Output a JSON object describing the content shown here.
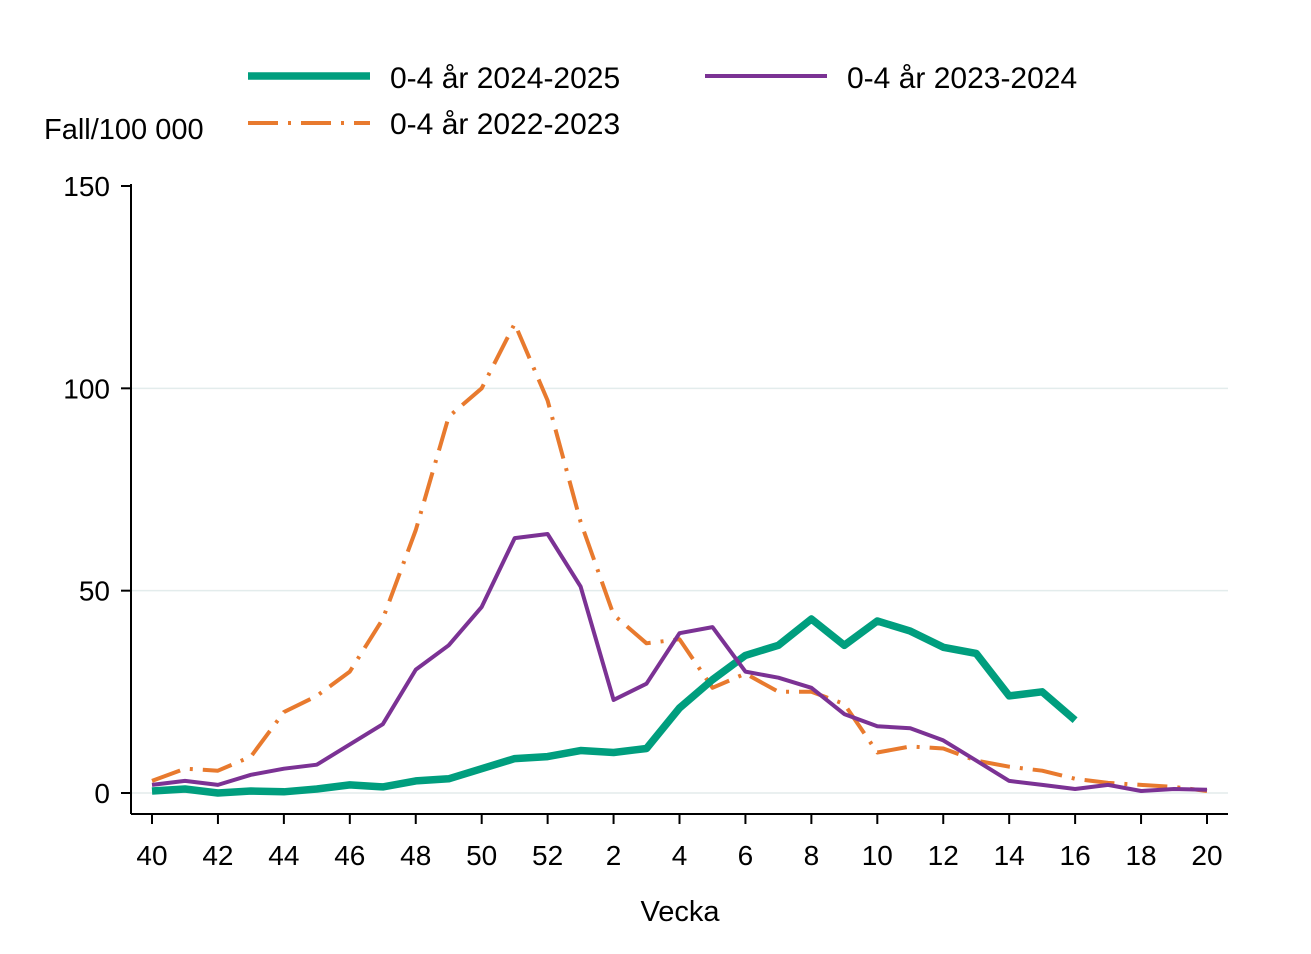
{
  "chart_data": {
    "type": "line",
    "title": "",
    "ylabel": "Fall/100 000",
    "xlabel": "Vecka",
    "ylim": [
      0,
      150
    ],
    "yticks": [
      0,
      50,
      100,
      150
    ],
    "x": [
      "40",
      "41",
      "42",
      "43",
      "44",
      "45",
      "46",
      "47",
      "48",
      "49",
      "50",
      "51",
      "52",
      "1",
      "2",
      "3",
      "4",
      "5",
      "6",
      "7",
      "8",
      "9",
      "10",
      "11",
      "12",
      "13",
      "14",
      "15",
      "16",
      "17",
      "18",
      "19",
      "20"
    ],
    "xtick_labels": [
      "40",
      "42",
      "44",
      "46",
      "48",
      "50",
      "52",
      "2",
      "4",
      "6",
      "8",
      "10",
      "12",
      "14",
      "16",
      "18",
      "20"
    ],
    "grid": true,
    "legend_position": "top",
    "series": [
      {
        "name": "0-4 år 2024-2025",
        "color": "#009e7e",
        "style": "solid-thick",
        "values": [
          0.5,
          1,
          0,
          0.5,
          0.3,
          1,
          2,
          1.5,
          3,
          3.5,
          6,
          8.5,
          9,
          10.5,
          10,
          11,
          21,
          28,
          34,
          36.5,
          43,
          36.5,
          42.5,
          40,
          36,
          34.5,
          24,
          25,
          18,
          null,
          null,
          null,
          null
        ]
      },
      {
        "name": "0-4 år 2023-2024",
        "color": "#7b3294",
        "style": "solid",
        "values": [
          2,
          3,
          2,
          4.5,
          6,
          7,
          12,
          17,
          30.5,
          36.5,
          46,
          63,
          64,
          51,
          23,
          27,
          39.5,
          41,
          30,
          28.5,
          26,
          19.5,
          16.5,
          16,
          13,
          8,
          3,
          2,
          1,
          2,
          0.5,
          1,
          0.8
        ]
      },
      {
        "name": "0-4 år 2022-2023",
        "color": "#e87a2e",
        "style": "dash-dot",
        "values": [
          3,
          6,
          5.5,
          9,
          20,
          24,
          30,
          43,
          65,
          93,
          100,
          116,
          97,
          67,
          44,
          37,
          38,
          26,
          29.5,
          25,
          25,
          22,
          10,
          11.5,
          11,
          8,
          6.5,
          5.5,
          3.5,
          2.5,
          2,
          1.5,
          0.5
        ]
      }
    ]
  }
}
